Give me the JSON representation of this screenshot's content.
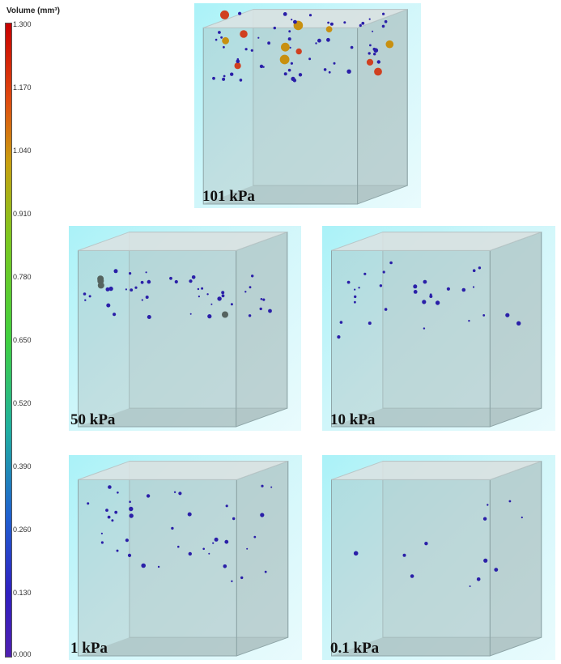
{
  "colorbar": {
    "title": "Volume (mm³)",
    "ticks": [
      "1.300",
      "1.170",
      "1.040",
      "0.910",
      "0.780",
      "0.650",
      "0.520",
      "0.390",
      "0.260",
      "0.130",
      "0.000"
    ]
  },
  "panels": [
    {
      "label": "101 kPa"
    },
    {
      "label": "50 kPa"
    },
    {
      "label": "10 kPa"
    },
    {
      "label": "1 kPa"
    },
    {
      "label": "0.1 kPa"
    }
  ]
}
